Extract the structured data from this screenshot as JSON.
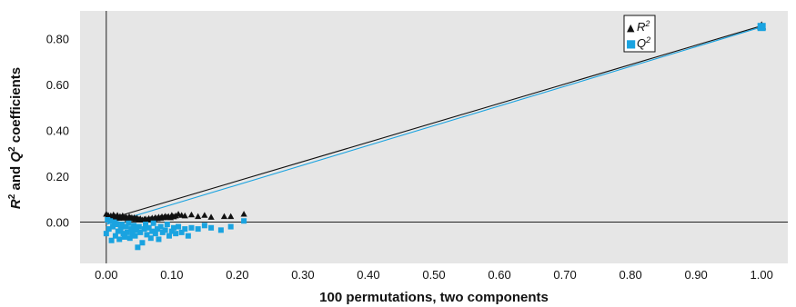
{
  "chart_data": {
    "type": "scatter",
    "xlabel": "100 permutations, two components",
    "ylabel_parts": [
      "R",
      "2",
      " and ",
      "Q",
      "2",
      " coefficients"
    ],
    "xlim": [
      -0.04,
      1.04
    ],
    "ylim": [
      -0.18,
      0.92
    ],
    "x_ticks": [
      "0.00",
      "0.10",
      "0.20",
      "0.30",
      "0.40",
      "0.50",
      "0.60",
      "0.70",
      "0.80",
      "0.90",
      "1.00"
    ],
    "x_tick_values": [
      0,
      0.1,
      0.2,
      0.3,
      0.4,
      0.5,
      0.6,
      0.7,
      0.8,
      0.9,
      1.0
    ],
    "y_ticks": [
      "0.00",
      "0.20",
      "0.40",
      "0.60",
      "0.80"
    ],
    "y_tick_values": [
      0,
      0.2,
      0.4,
      0.6,
      0.8
    ],
    "grid": false,
    "background_color": "#e6e6e6",
    "legend_position": "top-right",
    "legend": [
      {
        "base": "R",
        "sup": "2",
        "marker": "▲",
        "color": "#111111"
      },
      {
        "base": "Q",
        "sup": "2",
        "marker": "■",
        "color": "#1aa3e0"
      }
    ],
    "series": [
      {
        "key": "R2",
        "marker": "triangle",
        "color": "#111111",
        "intercept_line": {
          "x": [
            0.0,
            1.0
          ],
          "y": [
            0.01,
            0.855
          ]
        },
        "points": [
          [
            0.0,
            0.035
          ],
          [
            0.003,
            0.03
          ],
          [
            0.005,
            0.02
          ],
          [
            0.007,
            0.028
          ],
          [
            0.009,
            0.02
          ],
          [
            0.011,
            0.032
          ],
          [
            0.013,
            0.025
          ],
          [
            0.015,
            0.022
          ],
          [
            0.017,
            0.03
          ],
          [
            0.019,
            0.018
          ],
          [
            0.021,
            0.025
          ],
          [
            0.023,
            0.02
          ],
          [
            0.025,
            0.028
          ],
          [
            0.027,
            0.018
          ],
          [
            0.029,
            0.022
          ],
          [
            0.031,
            0.02
          ],
          [
            0.033,
            0.015
          ],
          [
            0.035,
            0.024
          ],
          [
            0.037,
            0.018
          ],
          [
            0.039,
            0.02
          ],
          [
            0.041,
            0.015
          ],
          [
            0.043,
            0.02
          ],
          [
            0.045,
            0.014
          ],
          [
            0.047,
            0.018
          ],
          [
            0.05,
            0.012
          ],
          [
            0.052,
            0.015
          ],
          [
            0.055,
            0.01
          ],
          [
            0.058,
            0.012
          ],
          [
            0.06,
            0.014
          ],
          [
            0.063,
            0.01
          ],
          [
            0.065,
            0.016
          ],
          [
            0.068,
            0.012
          ],
          [
            0.07,
            0.018
          ],
          [
            0.073,
            0.014
          ],
          [
            0.075,
            0.02
          ],
          [
            0.078,
            0.016
          ],
          [
            0.08,
            0.022
          ],
          [
            0.083,
            0.018
          ],
          [
            0.085,
            0.024
          ],
          [
            0.088,
            0.02
          ],
          [
            0.09,
            0.026
          ],
          [
            0.093,
            0.022
          ],
          [
            0.095,
            0.025
          ],
          [
            0.098,
            0.02
          ],
          [
            0.1,
            0.03
          ],
          [
            0.103,
            0.024
          ],
          [
            0.106,
            0.028
          ],
          [
            0.11,
            0.035
          ],
          [
            0.115,
            0.03
          ],
          [
            0.12,
            0.028
          ],
          [
            0.13,
            0.032
          ],
          [
            0.14,
            0.025
          ],
          [
            0.15,
            0.03
          ],
          [
            0.16,
            0.022
          ],
          [
            0.18,
            0.025
          ],
          [
            0.19,
            0.025
          ],
          [
            0.21,
            0.035
          ],
          [
            1.0,
            0.855
          ]
        ]
      },
      {
        "key": "Q2",
        "marker": "square",
        "color": "#1aa3e0",
        "intercept_line": {
          "x": [
            0.0,
            1.0
          ],
          "y": [
            -0.01,
            0.85
          ]
        },
        "points": [
          [
            0.0,
            -0.05
          ],
          [
            0.002,
            0.01
          ],
          [
            0.004,
            -0.03
          ],
          [
            0.006,
            0.005
          ],
          [
            0.008,
            -0.08
          ],
          [
            0.01,
            -0.02
          ],
          [
            0.012,
            0.0
          ],
          [
            0.014,
            -0.06
          ],
          [
            0.016,
            -0.01
          ],
          [
            0.018,
            -0.04
          ],
          [
            0.02,
            -0.075
          ],
          [
            0.022,
            -0.03
          ],
          [
            0.024,
            -0.01
          ],
          [
            0.026,
            -0.05
          ],
          [
            0.028,
            -0.065
          ],
          [
            0.03,
            -0.02
          ],
          [
            0.032,
            -0.045
          ],
          [
            0.034,
            -0.005
          ],
          [
            0.036,
            -0.07
          ],
          [
            0.038,
            -0.03
          ],
          [
            0.04,
            -0.05
          ],
          [
            0.042,
            -0.015
          ],
          [
            0.044,
            -0.06
          ],
          [
            0.046,
            -0.035
          ],
          [
            0.048,
            -0.11
          ],
          [
            0.05,
            -0.02
          ],
          [
            0.052,
            -0.045
          ],
          [
            0.055,
            -0.09
          ],
          [
            0.058,
            -0.03
          ],
          [
            0.06,
            -0.01
          ],
          [
            0.062,
            -0.055
          ],
          [
            0.065,
            -0.025
          ],
          [
            0.068,
            -0.07
          ],
          [
            0.07,
            -0.04
          ],
          [
            0.072,
            -0.005
          ],
          [
            0.075,
            -0.05
          ],
          [
            0.078,
            -0.03
          ],
          [
            0.08,
            -0.075
          ],
          [
            0.083,
            -0.02
          ],
          [
            0.086,
            -0.045
          ],
          [
            0.09,
            -0.035
          ],
          [
            0.093,
            -0.01
          ],
          [
            0.096,
            -0.06
          ],
          [
            0.1,
            -0.04
          ],
          [
            0.103,
            -0.025
          ],
          [
            0.106,
            -0.05
          ],
          [
            0.11,
            -0.02
          ],
          [
            0.115,
            -0.045
          ],
          [
            0.12,
            -0.03
          ],
          [
            0.125,
            -0.06
          ],
          [
            0.13,
            -0.025
          ],
          [
            0.14,
            -0.03
          ],
          [
            0.15,
            -0.015
          ],
          [
            0.16,
            -0.025
          ],
          [
            0.175,
            -0.035
          ],
          [
            0.19,
            -0.02
          ],
          [
            0.21,
            0.005
          ],
          [
            1.0,
            0.85
          ]
        ]
      }
    ]
  }
}
